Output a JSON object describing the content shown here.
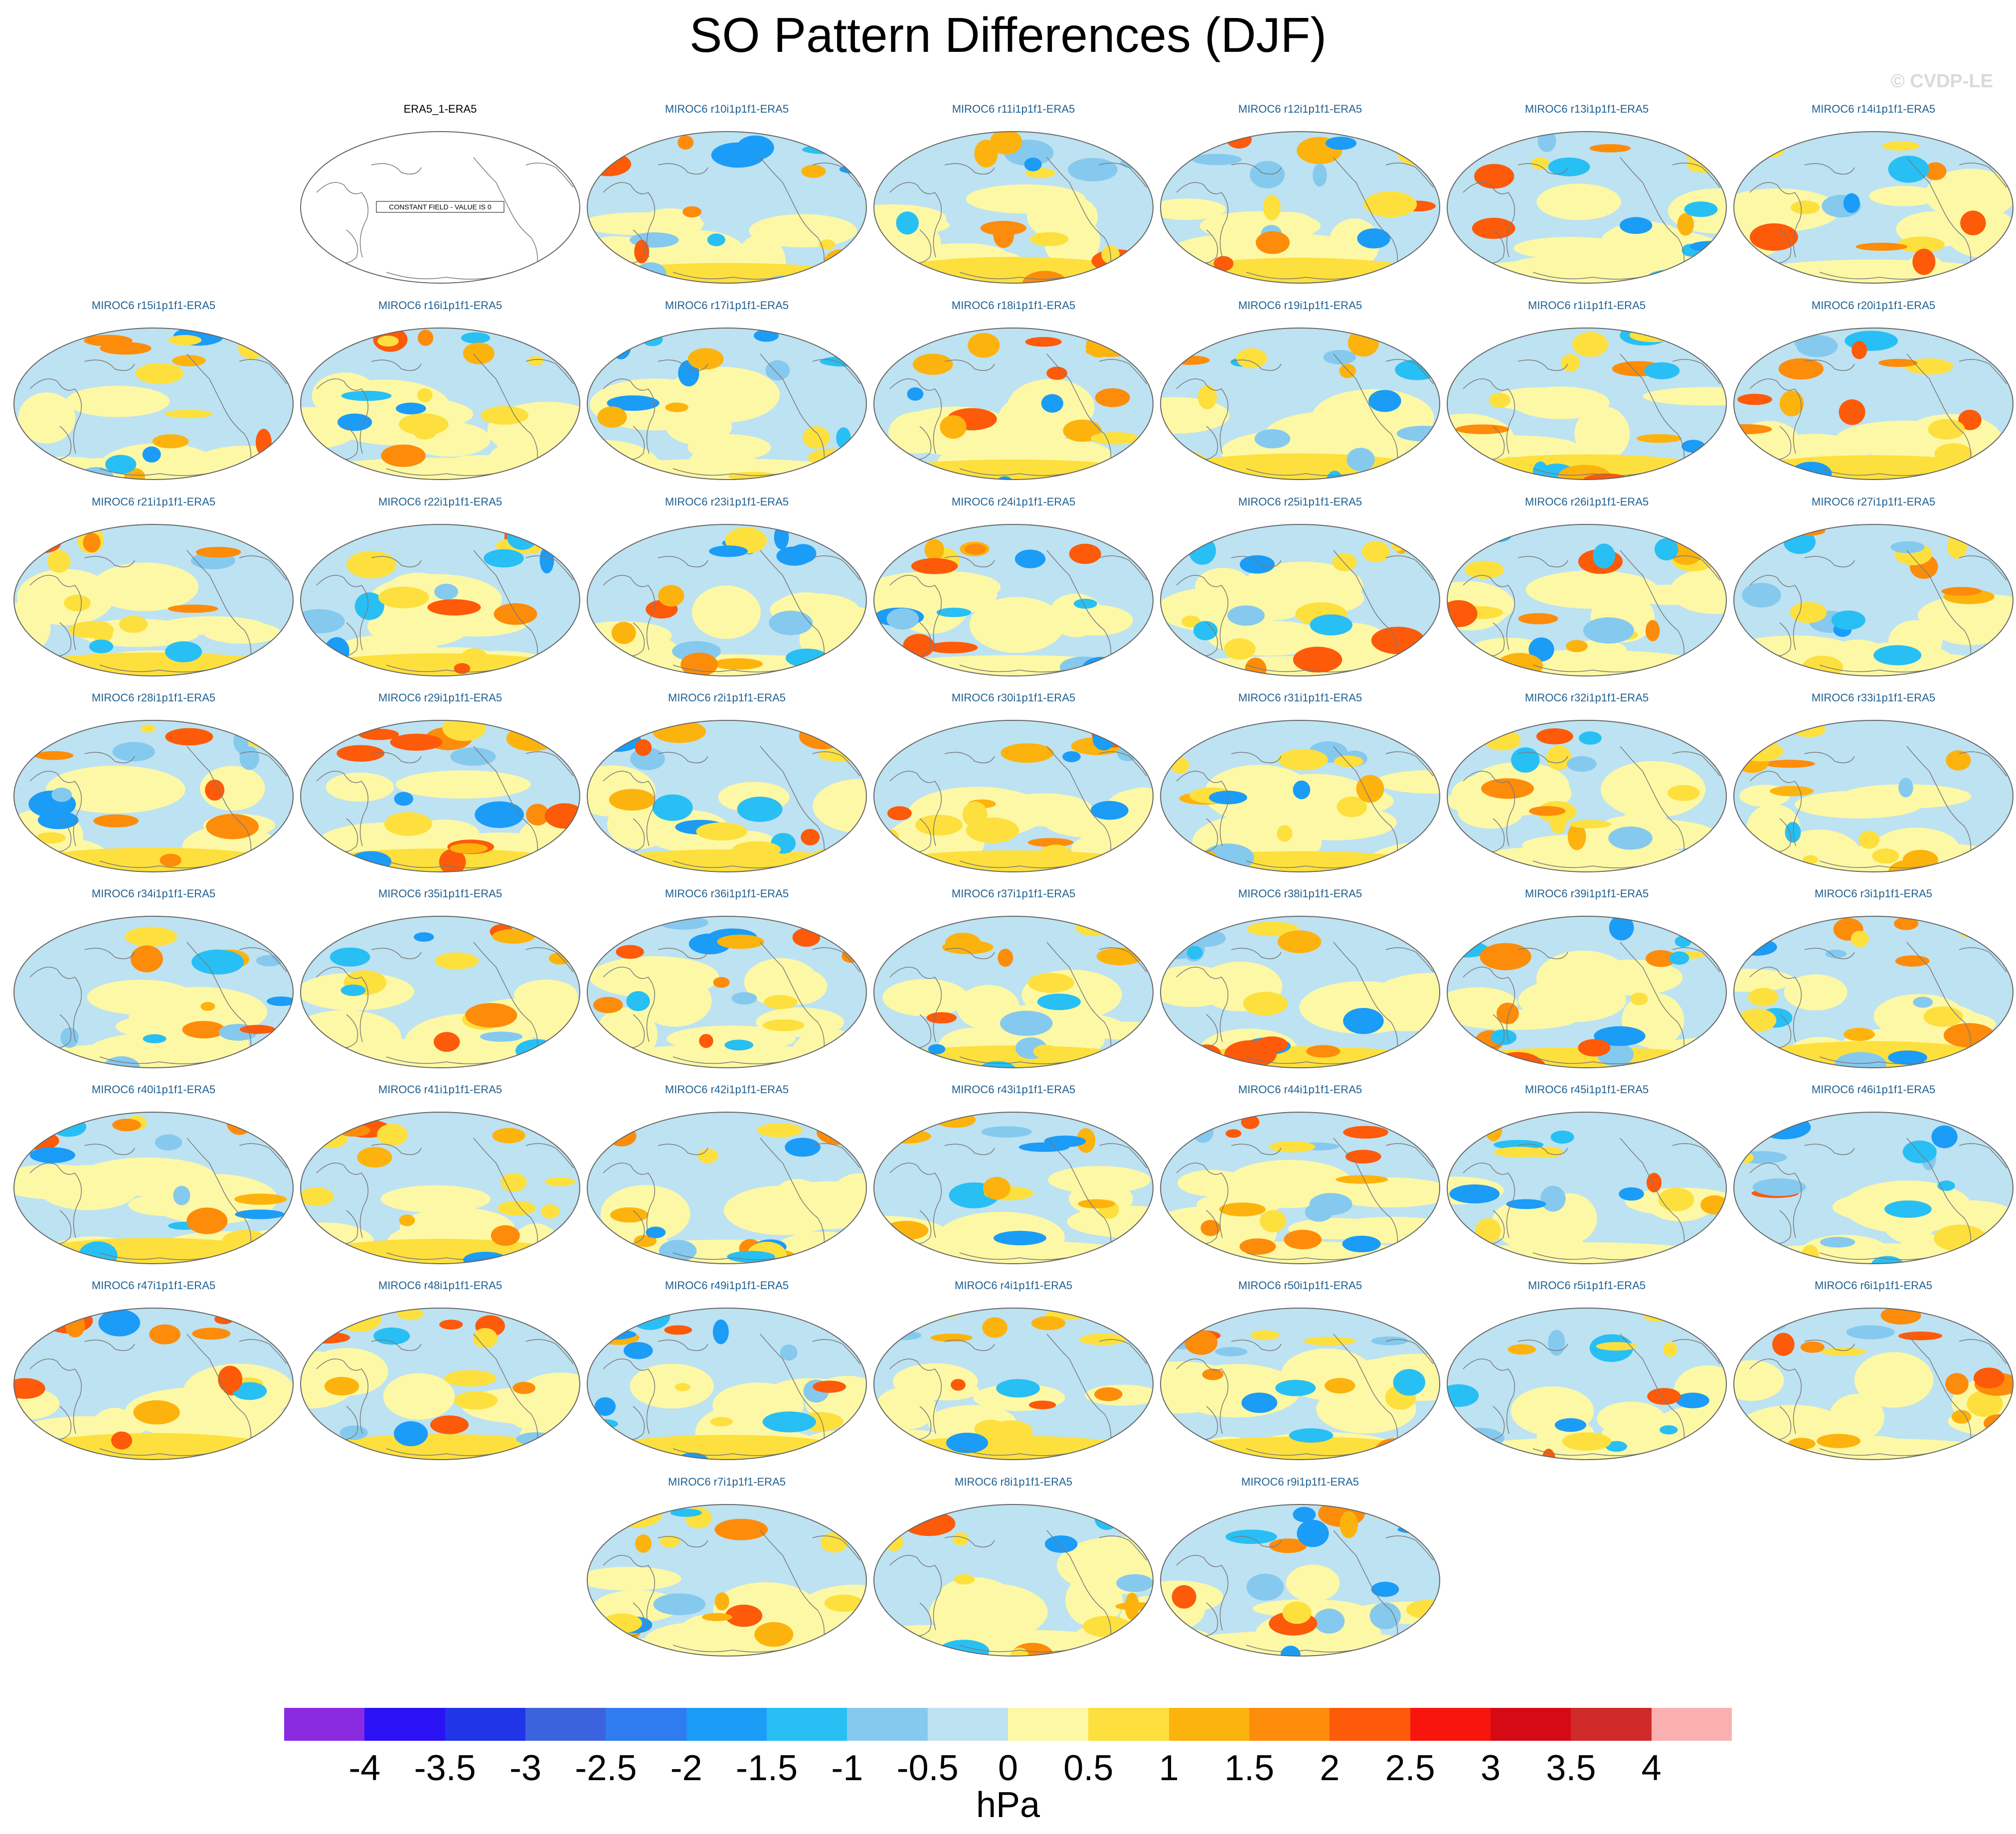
{
  "title": "SO Pattern Differences (DJF)",
  "watermark": "© CVDP-LE",
  "constant_field_note": "CONSTANT FIELD - VALUE IS 0",
  "panels": [
    {
      "label": "ERA5_1-ERA5",
      "constant": true
    },
    {
      "label": "MIROC6 r10i1p1f1-ERA5"
    },
    {
      "label": "MIROC6 r11i1p1f1-ERA5"
    },
    {
      "label": "MIROC6 r12i1p1f1-ERA5"
    },
    {
      "label": "MIROC6 r13i1p1f1-ERA5"
    },
    {
      "label": "MIROC6 r14i1p1f1-ERA5"
    },
    {
      "label": "MIROC6 r15i1p1f1-ERA5"
    },
    {
      "label": "MIROC6 r16i1p1f1-ERA5"
    },
    {
      "label": "MIROC6 r17i1p1f1-ERA5"
    },
    {
      "label": "MIROC6 r18i1p1f1-ERA5"
    },
    {
      "label": "MIROC6 r19i1p1f1-ERA5"
    },
    {
      "label": "MIROC6 r1i1p1f1-ERA5"
    },
    {
      "label": "MIROC6 r20i1p1f1-ERA5"
    },
    {
      "label": "MIROC6 r21i1p1f1-ERA5"
    },
    {
      "label": "MIROC6 r22i1p1f1-ERA5"
    },
    {
      "label": "MIROC6 r23i1p1f1-ERA5"
    },
    {
      "label": "MIROC6 r24i1p1f1-ERA5"
    },
    {
      "label": "MIROC6 r25i1p1f1-ERA5"
    },
    {
      "label": "MIROC6 r26i1p1f1-ERA5"
    },
    {
      "label": "MIROC6 r27i1p1f1-ERA5"
    },
    {
      "label": "MIROC6 r28i1p1f1-ERA5"
    },
    {
      "label": "MIROC6 r29i1p1f1-ERA5"
    },
    {
      "label": "MIROC6 r2i1p1f1-ERA5"
    },
    {
      "label": "MIROC6 r30i1p1f1-ERA5"
    },
    {
      "label": "MIROC6 r31i1p1f1-ERA5"
    },
    {
      "label": "MIROC6 r32i1p1f1-ERA5"
    },
    {
      "label": "MIROC6 r33i1p1f1-ERA5"
    },
    {
      "label": "MIROC6 r34i1p1f1-ERA5"
    },
    {
      "label": "MIROC6 r35i1p1f1-ERA5"
    },
    {
      "label": "MIROC6 r36i1p1f1-ERA5"
    },
    {
      "label": "MIROC6 r37i1p1f1-ERA5"
    },
    {
      "label": "MIROC6 r38i1p1f1-ERA5"
    },
    {
      "label": "MIROC6 r39i1p1f1-ERA5"
    },
    {
      "label": "MIROC6 r3i1p1f1-ERA5"
    },
    {
      "label": "MIROC6 r40i1p1f1-ERA5"
    },
    {
      "label": "MIROC6 r41i1p1f1-ERA5"
    },
    {
      "label": "MIROC6 r42i1p1f1-ERA5"
    },
    {
      "label": "MIROC6 r43i1p1f1-ERA5"
    },
    {
      "label": "MIROC6 r44i1p1f1-ERA5"
    },
    {
      "label": "MIROC6 r45i1p1f1-ERA5"
    },
    {
      "label": "MIROC6 r46i1p1f1-ERA5"
    },
    {
      "label": "MIROC6 r47i1p1f1-ERA5"
    },
    {
      "label": "MIROC6 r48i1p1f1-ERA5"
    },
    {
      "label": "MIROC6 r49i1p1f1-ERA5"
    },
    {
      "label": "MIROC6 r4i1p1f1-ERA5"
    },
    {
      "label": "MIROC6 r50i1p1f1-ERA5"
    },
    {
      "label": "MIROC6 r5i1p1f1-ERA5"
    },
    {
      "label": "MIROC6 r6i1p1f1-ERA5"
    },
    {
      "label": "MIROC6 r7i1p1f1-ERA5"
    },
    {
      "label": "MIROC6 r8i1p1f1-ERA5"
    },
    {
      "label": "MIROC6 r9i1p1f1-ERA5"
    }
  ],
  "colorbar": {
    "units": "hPa",
    "tick_labels": [
      "-4",
      "-3.5",
      "-3",
      "-2.5",
      "-2",
      "-1.5",
      "-1",
      "-0.5",
      "0",
      "0.5",
      "1",
      "1.5",
      "2",
      "2.5",
      "3",
      "3.5",
      "4"
    ],
    "colors": [
      "#8a2be2",
      "#2a12f5",
      "#2035e8",
      "#3c63de",
      "#2f7cf0",
      "#1b9cf7",
      "#28bff4",
      "#86c9ee",
      "#bde2f2",
      "#fdf8a5",
      "#fde03d",
      "#fdb30d",
      "#fd8c0a",
      "#fd5a0a",
      "#f7150e",
      "#d60a14",
      "#d02a2a",
      "#fbb0b0"
    ]
  }
}
